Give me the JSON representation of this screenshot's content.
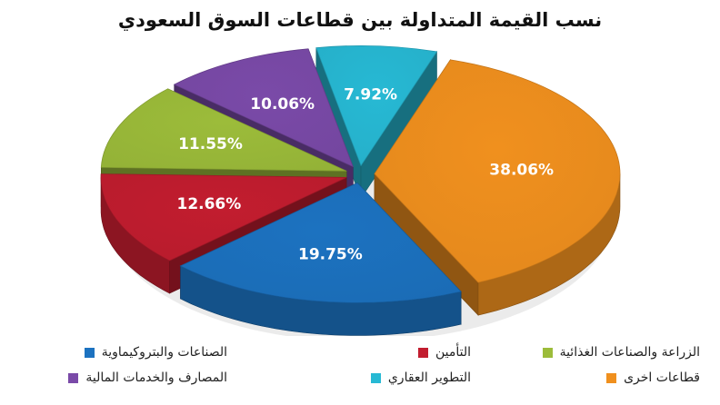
{
  "chart_data": {
    "type": "pie",
    "title": "نسب القيمة المتداولة بين قطاعات السوق السعودي",
    "slices": [
      {
        "label": "قطاعات اخرى",
        "value": 38.06,
        "value_label": "38.06%",
        "color": "#f0901e"
      },
      {
        "label": "الصناعات والبتروكيماوية",
        "value": 19.75,
        "value_label": "19.75%",
        "color": "#1c72c0"
      },
      {
        "label": "التأمين",
        "value": 12.66,
        "value_label": "12.66%",
        "color": "#c21d2f"
      },
      {
        "label": "الزراعة والصناعات الغذائية",
        "value": 11.55,
        "value_label": "11.55%",
        "color": "#9cbc3a"
      },
      {
        "label": "المصارف والخدمات المالية",
        "value": 10.06,
        "value_label": "10.06%",
        "color": "#7a4aa8"
      },
      {
        "label": "التطوير العقاري",
        "value": 7.92,
        "value_label": "7.92%",
        "color": "#27b9d4"
      }
    ],
    "legend_position": "bottom",
    "exploded": true,
    "style": "3d"
  }
}
